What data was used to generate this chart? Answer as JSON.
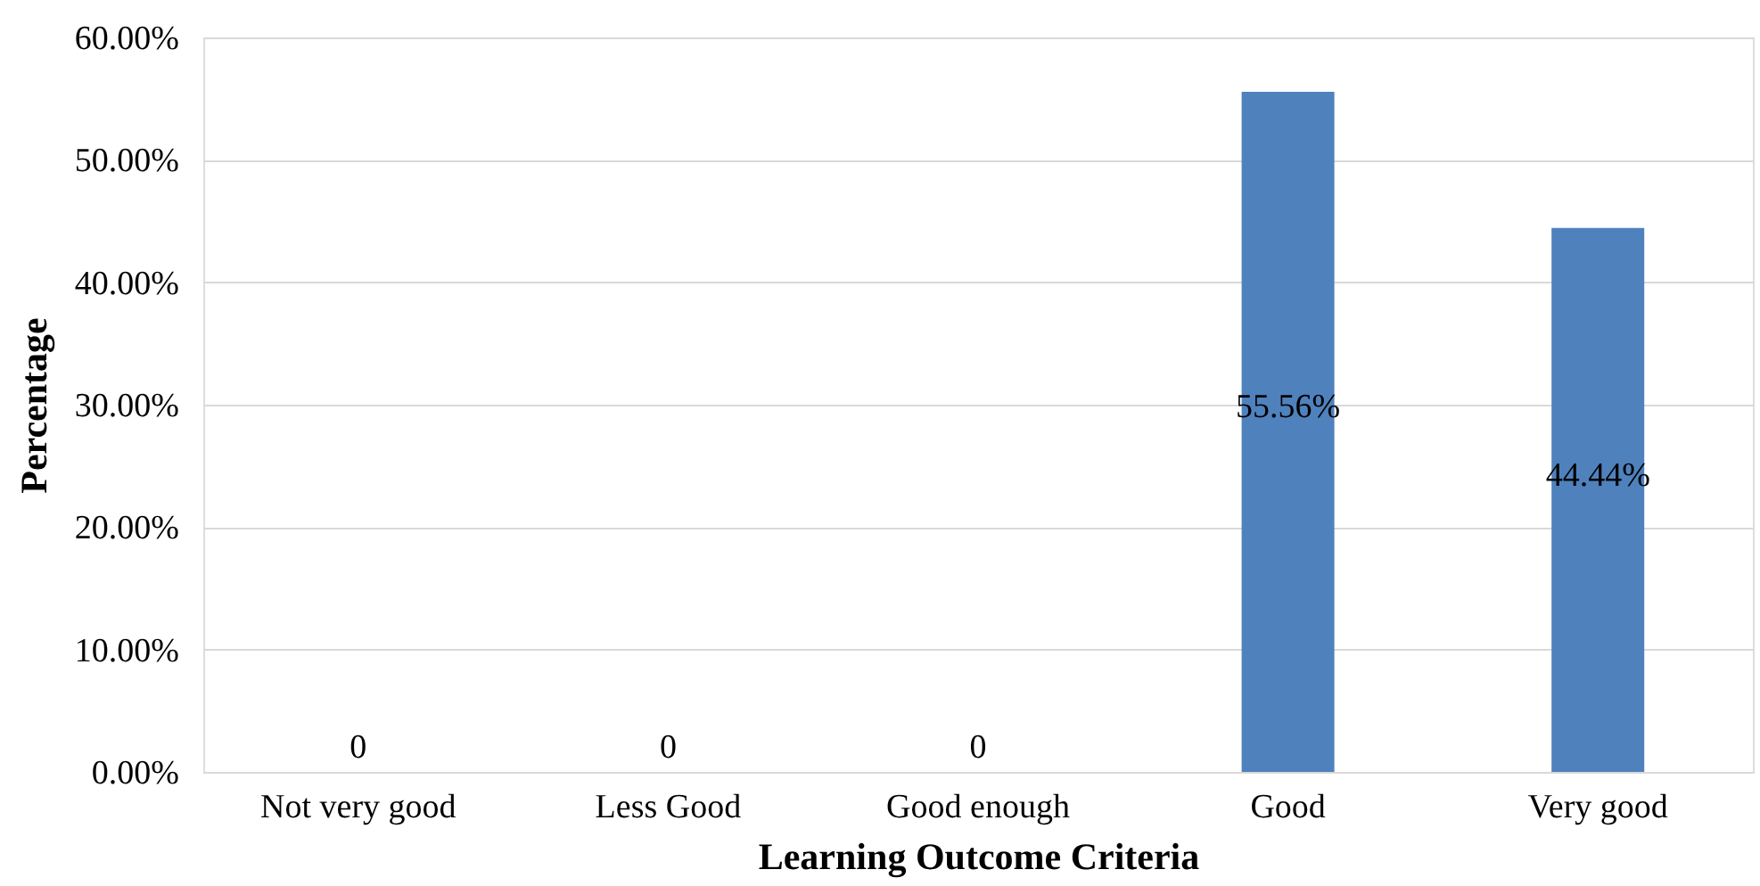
{
  "chart_data": {
    "type": "bar",
    "xlabel": "Learning Outcome Criteria",
    "ylabel": "Percentage",
    "categories": [
      "Not very good",
      "Less Good",
      "Good enough",
      "Good",
      "Very good"
    ],
    "values": [
      0,
      0,
      0,
      55.56,
      44.44
    ],
    "value_labels": [
      "0",
      "0",
      "0",
      "55.56%",
      "44.44%"
    ],
    "color": "#4f81bd",
    "ylim": [
      0,
      60
    ],
    "yticks": [
      {
        "value": 0,
        "label": "0.00%"
      },
      {
        "value": 10,
        "label": "10.00%"
      },
      {
        "value": 20,
        "label": "20.00%"
      },
      {
        "value": 30,
        "label": "30.00%"
      },
      {
        "value": 40,
        "label": "40.00%"
      },
      {
        "value": 50,
        "label": "50.00%"
      },
      {
        "value": 60,
        "label": "60.00%"
      }
    ],
    "grid": "y"
  }
}
